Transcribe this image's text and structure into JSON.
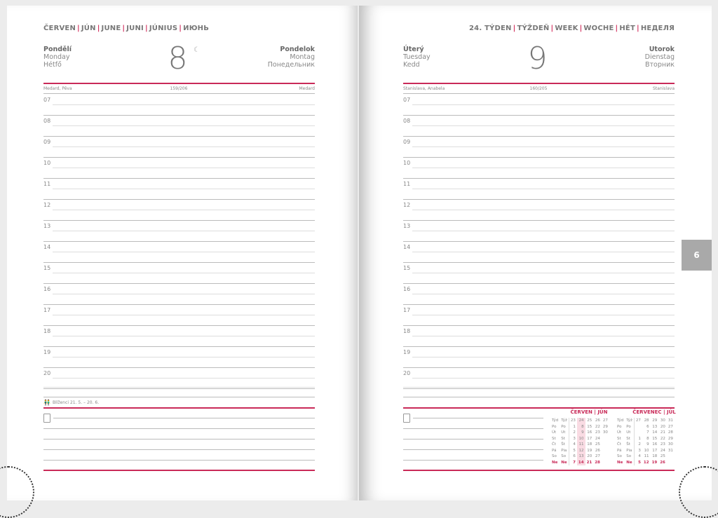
{
  "left": {
    "month_header": [
      "ČERVEN",
      "JÚN",
      "JUNE",
      "JUNI",
      "JÚNIUS",
      "ИЮНЬ"
    ],
    "day_names_left": [
      "Pondělí",
      "Monday",
      "Hétfő"
    ],
    "day_number": "8",
    "moon_icon": "crescent-moon",
    "day_names_right": [
      "Pondelok",
      "Montag",
      "Понедельник"
    ],
    "names_left": "Medard, Pěva",
    "day_of_year": "159/206",
    "names_right": "Medard",
    "hours": [
      "07",
      "08",
      "09",
      "10",
      "11",
      "12",
      "13",
      "14",
      "15",
      "16",
      "17",
      "18",
      "19",
      "20"
    ],
    "zodiac": "Blíženci 21. 5. – 20. 6."
  },
  "right": {
    "week_header": [
      "24. TÝDEN",
      "TÝŽDEŇ",
      "WEEK",
      "WOCHE",
      "HÉT",
      "НЕДЕЛЯ"
    ],
    "day_names_left": [
      "Úterý",
      "Tuesday",
      "Kedd"
    ],
    "day_number": "9",
    "day_names_right": [
      "Utorok",
      "Dienstag",
      "Вторник"
    ],
    "names_left": "Stanislava, Anabela",
    "day_of_year": "160/205",
    "names_right": "Stanislava",
    "hours": [
      "07",
      "08",
      "09",
      "10",
      "11",
      "12",
      "13",
      "14",
      "15",
      "16",
      "17",
      "18",
      "19",
      "20"
    ],
    "month_tab": "6",
    "calendars": [
      {
        "title": "ČERVEN | JÚN",
        "highlight_week": "24",
        "rows": [
          [
            "Týd",
            "Týž",
            "23",
            "24",
            "25",
            "26",
            "27"
          ],
          [
            "Po",
            "Po",
            "1",
            "8",
            "15",
            "22",
            "29"
          ],
          [
            "Út",
            "Ut",
            "2",
            "9",
            "16",
            "23",
            "30"
          ],
          [
            "St",
            "St",
            "3",
            "10",
            "17",
            "24",
            ""
          ],
          [
            "Čt",
            "Št",
            "4",
            "11",
            "18",
            "25",
            ""
          ],
          [
            "Pá",
            "Pia",
            "5",
            "12",
            "19",
            "26",
            ""
          ],
          [
            "So",
            "So",
            "6",
            "13",
            "20",
            "27",
            ""
          ],
          [
            "Ne",
            "Ne",
            "7",
            "14",
            "21",
            "28",
            ""
          ]
        ]
      },
      {
        "title": "ČERVENEC | JÚL",
        "highlight_week": "",
        "rows": [
          [
            "Týd",
            "Týž",
            "27",
            "28",
            "29",
            "30",
            "31"
          ],
          [
            "Po",
            "Po",
            "",
            "6",
            "13",
            "20",
            "27"
          ],
          [
            "Út",
            "Ut",
            "",
            "7",
            "14",
            "21",
            "28"
          ],
          [
            "St",
            "St",
            "1",
            "8",
            "15",
            "22",
            "29"
          ],
          [
            "Čt",
            "Št",
            "2",
            "9",
            "16",
            "23",
            "30"
          ],
          [
            "Pá",
            "Pia",
            "3",
            "10",
            "17",
            "24",
            "31"
          ],
          [
            "So",
            "So",
            "4",
            "11",
            "18",
            "25",
            ""
          ],
          [
            "Ne",
            "Ne",
            "5",
            "12",
            "19",
            "26",
            ""
          ]
        ]
      }
    ]
  },
  "colors": {
    "accent": "#c92a58",
    "tab": "#a9a9a9"
  }
}
